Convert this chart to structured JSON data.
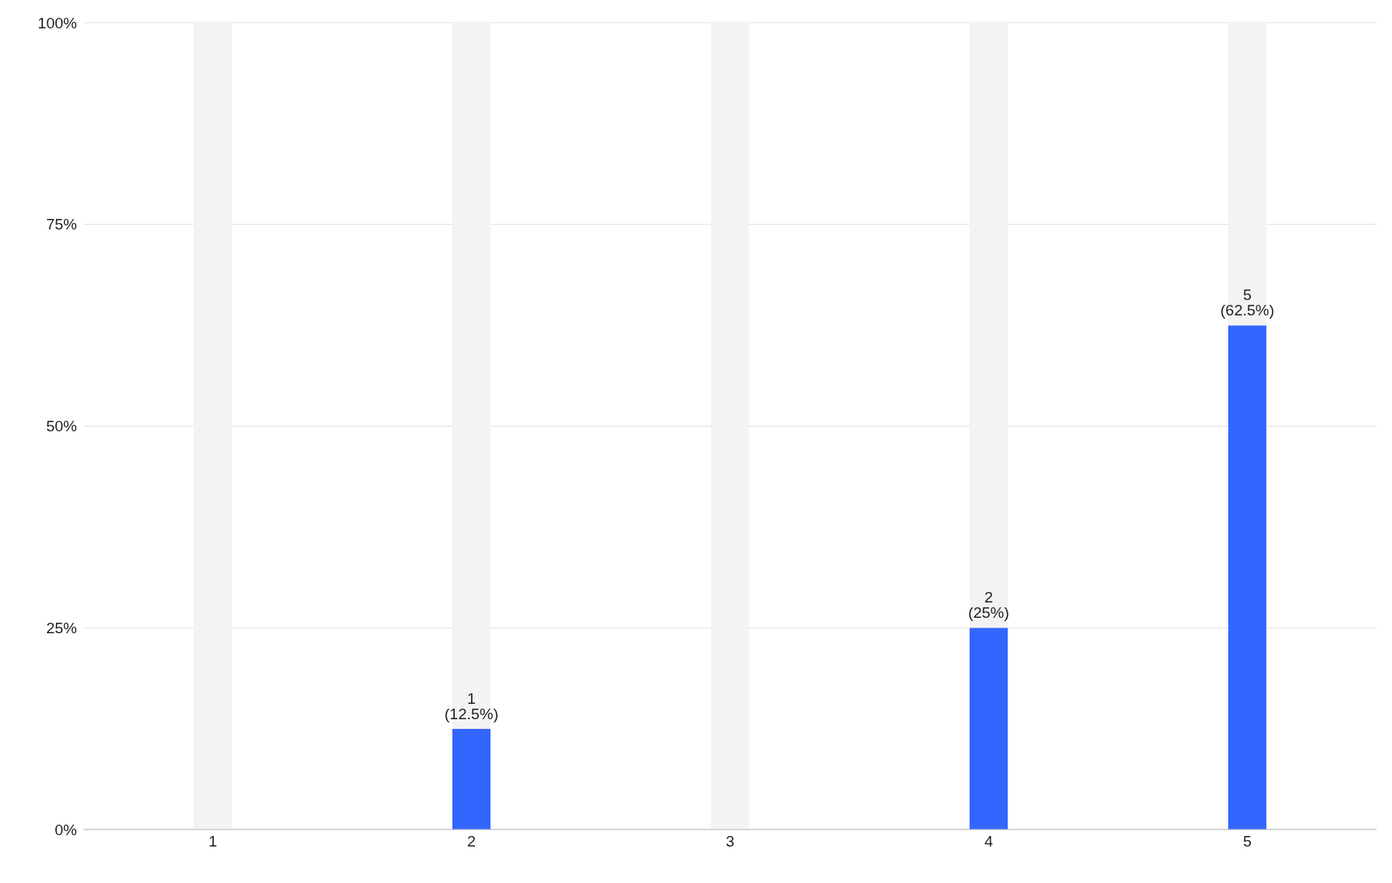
{
  "chart_data": {
    "type": "bar",
    "stacked": true,
    "categories": [
      "1",
      "2",
      "3",
      "4",
      "5"
    ],
    "series": [
      {
        "color": "#3366ff",
        "values": [
          0,
          12.5,
          0,
          25,
          62.5
        ],
        "value_labels": [
          null,
          "1 (12.5%)",
          null,
          "2 (25%)",
          "5 (62.5%)"
        ]
      },
      {
        "color": "#f3f3f3",
        "values": [
          100,
          87.5,
          100,
          75,
          37.5
        ]
      }
    ],
    "ylim": [
      0,
      100
    ],
    "yticks": [
      {
        "value": 0,
        "label": "0%"
      },
      {
        "value": 25,
        "label": "25%"
      },
      {
        "value": 50,
        "label": "50%"
      },
      {
        "value": 75,
        "label": "75%"
      },
      {
        "value": 100,
        "label": "100%"
      }
    ],
    "grid": "y",
    "legend": false
  }
}
